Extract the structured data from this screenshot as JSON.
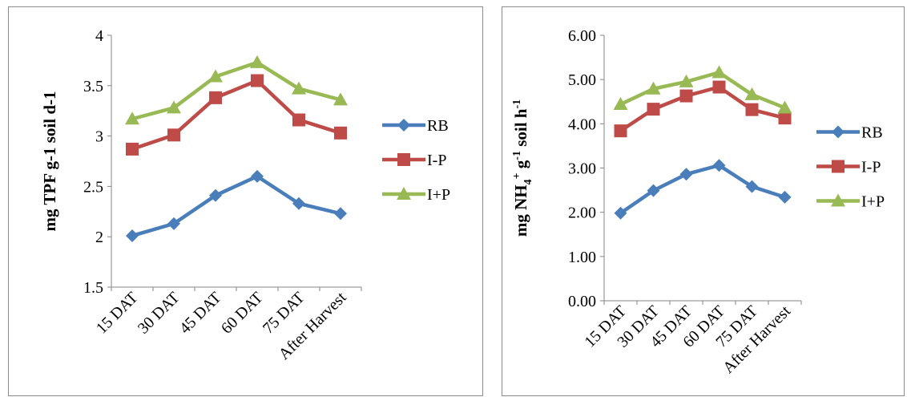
{
  "chart_data": [
    {
      "type": "line",
      "categories": [
        "15 DAT",
        "30 DAT",
        "45 DAT",
        "60 DAT",
        "75 DAT",
        "After Harvest"
      ],
      "ylabel": "mg TPF g-1 soil d-1",
      "ylim": [
        1.5,
        4
      ],
      "yticks": [
        "1.5",
        "2",
        "2.5",
        "3",
        "3.5",
        "4"
      ],
      "grid": false,
      "legend_position": "right",
      "series": [
        {
          "name": "RB",
          "color": "#4a7ebb",
          "marker": "diamond",
          "values": [
            2.01,
            2.13,
            2.41,
            2.6,
            2.33,
            2.23
          ]
        },
        {
          "name": "I-P",
          "color": "#be4b48",
          "marker": "square",
          "values": [
            2.87,
            3.01,
            3.38,
            3.55,
            3.16,
            3.03
          ]
        },
        {
          "name": "I+P",
          "color": "#98b954",
          "marker": "triangle",
          "values": [
            3.17,
            3.28,
            3.59,
            3.73,
            3.47,
            3.36
          ]
        }
      ]
    },
    {
      "type": "line",
      "categories": [
        "15 DAT",
        "30 DAT",
        "45 DAT",
        "60 DAT",
        "75 DAT",
        "After Harvest"
      ],
      "ylabel_parts": {
        "pre": "mg NH",
        "sub": "4",
        "sup": "+",
        "mid": " g",
        "sup2": "-1",
        "mid2": " soil h",
        "sup3": "-1"
      },
      "ylim": [
        0,
        6
      ],
      "yticks": [
        "0.00",
        "1.00",
        "2.00",
        "3.00",
        "4.00",
        "5.00",
        "6.00"
      ],
      "grid": false,
      "legend_position": "right",
      "series": [
        {
          "name": "RB",
          "color": "#4a7ebb",
          "marker": "diamond",
          "values": [
            1.98,
            2.49,
            2.86,
            3.06,
            2.58,
            2.34
          ]
        },
        {
          "name": "I-P",
          "color": "#be4b48",
          "marker": "square",
          "values": [
            3.84,
            4.33,
            4.63,
            4.83,
            4.32,
            4.13
          ]
        },
        {
          "name": "I+P",
          "color": "#98b954",
          "marker": "triangle",
          "values": [
            4.44,
            4.79,
            4.95,
            5.16,
            4.66,
            4.36
          ]
        }
      ]
    }
  ]
}
